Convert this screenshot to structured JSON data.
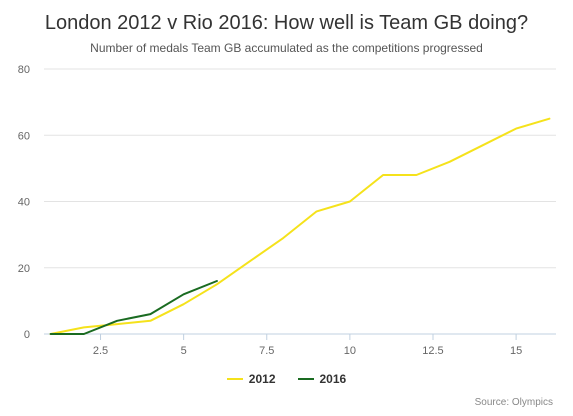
{
  "chart_data": {
    "type": "line",
    "title": "London 2012 v Rio 2016: How well is Team GB doing?",
    "subtitle": "Number of medals Team GB accumulated as the competitions progressed",
    "xlabel": "",
    "ylabel": "",
    "xlim": [
      0.8,
      16.2
    ],
    "ylim": [
      0,
      80
    ],
    "x_ticks": [
      "2.5",
      "5",
      "7.5",
      "10",
      "12.5",
      "15"
    ],
    "y_ticks": [
      "0",
      "20",
      "40",
      "60",
      "80"
    ],
    "grid": "horizontal",
    "legend_placement": "bottom-center",
    "series": [
      {
        "name": "2012",
        "color": "#f5e21b",
        "x": [
          1,
          2,
          3,
          4,
          5,
          6,
          7,
          8,
          9,
          10,
          11,
          12,
          13,
          14,
          15,
          16
        ],
        "values": [
          0,
          2,
          3,
          4,
          9,
          15,
          22,
          29,
          37,
          40,
          48,
          48,
          52,
          57,
          62,
          65
        ]
      },
      {
        "name": "2016",
        "color": "#1a6b21",
        "x": [
          1,
          2,
          3,
          4,
          5,
          6
        ],
        "values": [
          0,
          0,
          4,
          6,
          12,
          16
        ]
      }
    ]
  },
  "source_text": "Source: Olympics"
}
